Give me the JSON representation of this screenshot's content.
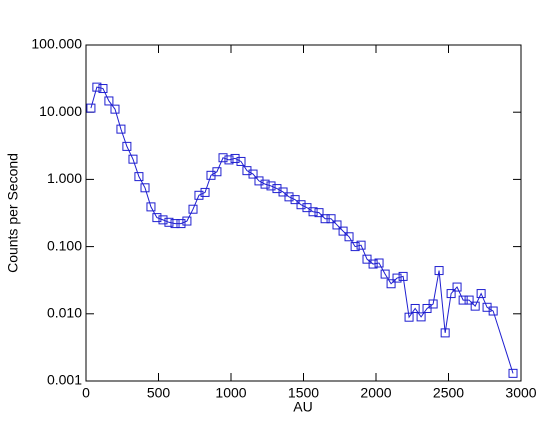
{
  "chart_data": {
    "type": "line",
    "x_label": "AU",
    "y_label": "Counts per Second",
    "x": [
      34,
      75,
      117,
      158,
      200,
      241,
      282,
      324,
      365,
      407,
      448,
      489,
      531,
      572,
      614,
      655,
      696,
      738,
      779,
      821,
      862,
      903,
      945,
      986,
      1028,
      1069,
      1110,
      1152,
      1193,
      1235,
      1276,
      1317,
      1359,
      1400,
      1442,
      1483,
      1524,
      1566,
      1607,
      1649,
      1690,
      1731,
      1773,
      1814,
      1856,
      1897,
      1938,
      1980,
      2021,
      2063,
      2104,
      2145,
      2187,
      2228,
      2270,
      2311,
      2352,
      2394,
      2435,
      2477,
      2518,
      2559,
      2601,
      2642,
      2684,
      2725,
      2766,
      2808,
      2945
    ],
    "series": [
      {
        "color": "#1f1fd0",
        "marker": "square",
        "values": [
          11.5,
          23.6,
          22.5,
          14.7,
          11.1,
          5.6,
          3.1,
          2.0,
          1.1,
          0.75,
          0.39,
          0.27,
          0.25,
          0.23,
          0.22,
          0.22,
          0.24,
          0.36,
          0.58,
          0.64,
          1.15,
          1.3,
          2.1,
          1.95,
          2.05,
          1.85,
          1.35,
          1.2,
          0.95,
          0.85,
          0.8,
          0.73,
          0.65,
          0.55,
          0.5,
          0.42,
          0.38,
          0.33,
          0.32,
          0.26,
          0.26,
          0.21,
          0.17,
          0.14,
          0.1,
          0.105,
          0.065,
          0.055,
          0.057,
          0.039,
          0.028,
          0.034,
          0.036,
          0.0089,
          0.012,
          0.009,
          0.012,
          0.014,
          0.044,
          0.0052,
          0.02,
          0.025,
          0.016,
          0.016,
          0.013,
          0.02,
          0.0125,
          0.011,
          0.0013
        ]
      }
    ],
    "xlim": [
      0,
      3000
    ],
    "xticks": [
      0,
      500,
      1000,
      1500,
      2000,
      2500,
      3000
    ],
    "ylim": [
      0.001,
      100
    ],
    "ylog": true,
    "yticks": [
      {
        "value": 0.001,
        "label": "0.001"
      },
      {
        "value": 0.01,
        "label": "0.010"
      },
      {
        "value": 0.1,
        "label": "0.100"
      },
      {
        "value": 1,
        "label": "1.000"
      },
      {
        "value": 10,
        "label": "10.000"
      },
      {
        "value": 100,
        "label": "100.000"
      }
    ],
    "grid": false
  }
}
